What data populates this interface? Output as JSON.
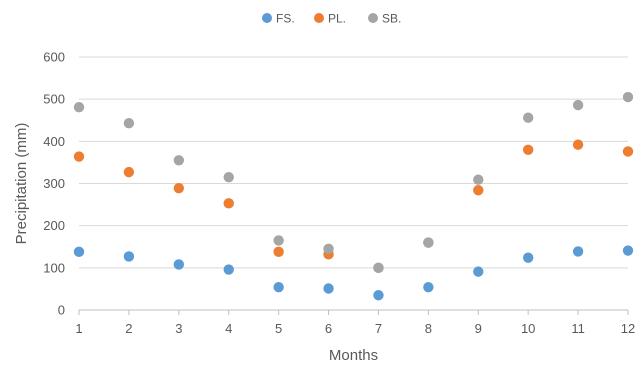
{
  "chart_data": {
    "type": "scatter",
    "title": "",
    "xlabel": "Months",
    "ylabel": "Precipitation (mm)",
    "xlim": [
      1,
      12
    ],
    "ylim": [
      0,
      600
    ],
    "x_ticks": [
      "1",
      "2",
      "3",
      "4",
      "5",
      "6",
      "7",
      "8",
      "9",
      "10",
      "11",
      "12"
    ],
    "y_ticks": [
      "0",
      "100",
      "200",
      "300",
      "400",
      "500",
      "600"
    ],
    "grid": "horizontal",
    "legend_position": "top-center",
    "x": [
      1,
      2,
      3,
      4,
      5,
      6,
      7,
      8,
      9,
      10,
      11,
      12
    ],
    "series": [
      {
        "name": "FS.",
        "color": "#5B9BD5",
        "values": [
          138,
          127,
          108,
          96,
          54,
          51,
          35,
          54,
          91,
          124,
          139,
          141
        ]
      },
      {
        "name": "PL.",
        "color": "#ED7D31",
        "values": [
          364,
          327,
          289,
          253,
          138,
          132,
          100,
          160,
          284,
          380,
          392,
          376
        ]
      },
      {
        "name": "SB.",
        "color": "#A5A5A5",
        "values": [
          481,
          443,
          355,
          315,
          165,
          145,
          100,
          160,
          309,
          456,
          486,
          505
        ]
      }
    ]
  }
}
